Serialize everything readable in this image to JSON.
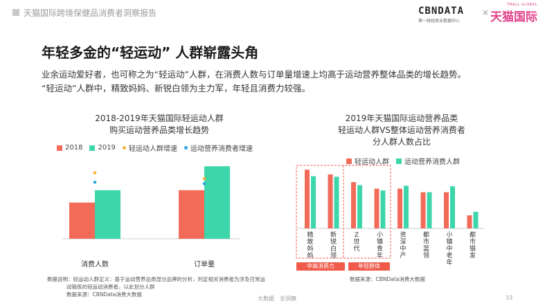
{
  "header": {
    "report_title": "天猫国际跨境保健品消费者洞察报告",
    "cbn_logo": "CBNDATA",
    "cbn_sub": "第一财经商业数据中心",
    "times": "×",
    "tmall_en": "TMALL GLOBAL",
    "tmall_logo": "天猫国际"
  },
  "headline": "年轻多金的“轻运动” 人群崭露头角",
  "intro": {
    "line1": "业余运动爱好者，也可称之为“轻运动”人群，在消费人数与订单量增速上均高于运动营养整体品类的增长趋势。",
    "line2": "“轻运动”人群中，精致妈妈、新锐白领为主力军，年轻且消费力较强。"
  },
  "left_chart": {
    "title_line1": "2018-2019年天猫国际轻运动人群",
    "title_line2": "购买运动营养品类增长趋势",
    "legend": [
      "2018",
      "2019",
      "轻运动人群增速",
      "运动营养消费者增速"
    ],
    "note_line1": "数据说明：轻运动人群定义：基于运动营养品类部分品牌的分析，判定相关消费者为涉及日常运",
    "note_line2": "动锻炼的轻运动消费者，以此划分人群",
    "note_line3": "数据来源：CBNData消费大数据"
  },
  "right_chart": {
    "title_line1": "2019年天猫国际运动营养品类",
    "title_line2": "轻运动人群VS整体运动营养消费者",
    "title_line3": "分人群人数占比",
    "legend": [
      "轻运动人群",
      "运动营养消费人群"
    ],
    "tag1": "中高消费力",
    "tag2": "年轻群体",
    "note": "数据来源：CBNData消费大数据"
  },
  "footer": {
    "center": "大数据　全洞察",
    "page": "33"
  },
  "colors": {
    "red": "#f26a58",
    "green": "#3dd6aa",
    "orange_dot": "#f7b23b",
    "blue_dot": "#2fa6e0",
    "tag_red": "#f05a4a"
  },
  "chart_data": [
    {
      "type": "bar",
      "title": "2018-2019年天猫国际轻运动人群购买运动营养品类增长趋势",
      "categories": [
        "消费人数",
        "订单量"
      ],
      "series": [
        {
          "name": "2018",
          "values": [
            0.5,
            0.67
          ]
        },
        {
          "name": "2019",
          "values": [
            0.67,
            1.0
          ]
        }
      ],
      "markers": [
        {
          "name": "轻运动人群增速",
          "values": [
            0.91,
            0.83
          ]
        },
        {
          "name": "运动营养消费者增速",
          "values": [
            0.78,
            0.76
          ]
        }
      ],
      "ylim": [
        0,
        1.05
      ]
    },
    {
      "type": "bar",
      "title": "2019年天猫国际运动营养品类 轻运动人群VS整体运动营养消费者 分人群人数占比",
      "categories": [
        "精致妈妈",
        "新锐白领",
        "Z世代",
        "小镇青年",
        "资深中产",
        "都市蓝领",
        "小镇中老年",
        "都市银发"
      ],
      "series": [
        {
          "name": "轻运动人群",
          "values": [
            0.99,
            0.91,
            0.78,
            0.67,
            0.67,
            0.61,
            0.61,
            0.22
          ]
        },
        {
          "name": "运动营养消费人群",
          "values": [
            0.88,
            0.87,
            0.73,
            0.64,
            0.72,
            0.61,
            0.71,
            0.28
          ]
        }
      ],
      "ylim": [
        0,
        1.05
      ]
    }
  ]
}
